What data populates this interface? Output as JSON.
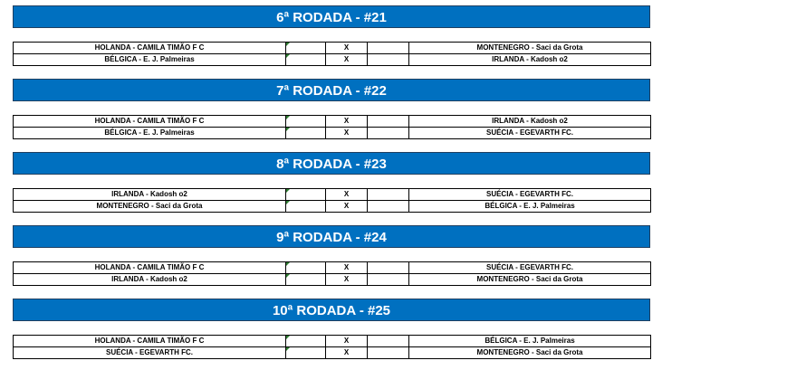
{
  "colors": {
    "header": "#0070C0",
    "marker": "#2e7d32"
  },
  "rounds": [
    {
      "title": "6ª RODADA - #21",
      "matches": [
        {
          "home": "HOLANDA - CAMILA TIMÃO F C",
          "vs": "X",
          "away": "MONTENEGRO - Saci da Grota"
        },
        {
          "home": "BÉLGICA - E. J. Palmeiras",
          "vs": "X",
          "away": "IRLANDA - Kadosh o2"
        }
      ]
    },
    {
      "title": "7ª RODADA - #22",
      "matches": [
        {
          "home": "HOLANDA - CAMILA TIMÃO F C",
          "vs": "X",
          "away": "IRLANDA - Kadosh o2"
        },
        {
          "home": "BÉLGICA - E. J. Palmeiras",
          "vs": "X",
          "away": "SUÉCIA - EGEVARTH FC."
        }
      ]
    },
    {
      "title": "8ª RODADA - #23",
      "matches": [
        {
          "home": "IRLANDA - Kadosh o2",
          "vs": "X",
          "away": "SUÉCIA - EGEVARTH FC."
        },
        {
          "home": "MONTENEGRO - Saci da Grota",
          "vs": "X",
          "away": "BÉLGICA - E. J. Palmeiras"
        }
      ]
    },
    {
      "title": "9ª RODADA - #24",
      "matches": [
        {
          "home": "HOLANDA - CAMILA TIMÃO F C",
          "vs": "X",
          "away": "SUÉCIA - EGEVARTH FC."
        },
        {
          "home": "IRLANDA - Kadosh o2",
          "vs": "X",
          "away": "MONTENEGRO - Saci da Grota"
        }
      ]
    },
    {
      "title": "10ª RODADA - #25",
      "matches": [
        {
          "home": "HOLANDA - CAMILA TIMÃO F C",
          "vs": "X",
          "away": "BÉLGICA - E. J. Palmeiras"
        },
        {
          "home": "SUÉCIA - EGEVARTH FC.",
          "vs": "X",
          "away": "MONTENEGRO - Saci da Grota"
        }
      ]
    }
  ]
}
